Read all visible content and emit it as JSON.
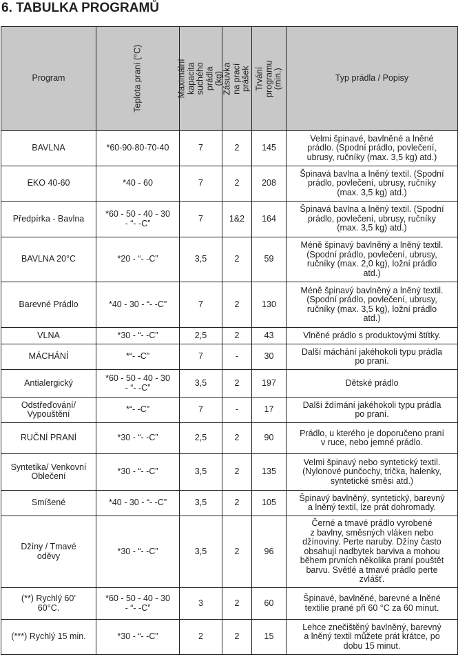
{
  "title": "6. TABULKA PROGRAMŮ",
  "header": {
    "program": "Program",
    "temp": "Teplota praní (°C)",
    "capacity": "Maximální kapacita\nsuchého prádla (kg)",
    "drawer": "Zásuvka na prací\nprášek",
    "duration": "Trvání programu\n(min.)",
    "desc": "Typ prádla / Popisy"
  },
  "colors": {
    "header_bg": "#c8c8c8",
    "border": "#222222"
  },
  "rows": [
    {
      "program": "BAVLNA",
      "temp": "*60-90-80-70-40",
      "capacity": "7",
      "drawer": "2",
      "duration": "145",
      "desc": "Velmi špinavé, bavlněné a lněné\nprádlo. (Spodní prádlo, povlečení,\nubrusy, ručníky (max. 3,5 kg) atd.)"
    },
    {
      "program": "EKO 40-60",
      "temp": "*40 - 60",
      "capacity": "7",
      "drawer": "2",
      "duration": "208",
      "desc": "Špinavá bavlna a lněný textil. (Spodní\nprádlo, povlečení, ubrusy, ručníky\n(max. 3,5 kg) atd.)"
    },
    {
      "program": "Předpírka - Bavlna",
      "temp": "*60 - 50 - 40 - 30\n- “- -C”",
      "capacity": "7",
      "drawer": "1&2",
      "duration": "164",
      "desc": "Špinavá bavlna a lněný textil. (Spodní\nprádlo, povlečení, ubrusy, ručníky\n(max. 3,5 kg) atd.)"
    },
    {
      "program": "BAVLNA 20°C",
      "temp": "*20 - “- -C”",
      "capacity": "3,5",
      "drawer": "2",
      "duration": "59",
      "desc": "Méně špinavý bavlněný a lněný textil.\n(Spodní prádlo, povlečení, ubrusy,\nručníky (max. 2,0 kg), ložní prádlo\natd.)"
    },
    {
      "program": "Barevné Prádlo",
      "temp": "*40 - 30 - “- -C”",
      "capacity": "7",
      "drawer": "2",
      "duration": "130",
      "desc": "Méně špinavý bavlněný a lněný textil.\n(Spodní prádlo, povlečení, ubrusy,\nručníky (max. 3,5 kg), ložní prádlo\natd.)"
    },
    {
      "program": "VLNA",
      "temp": "*30 - “- -C”",
      "capacity": "2,5",
      "drawer": "2",
      "duration": "43",
      "desc": "Vlněné prádlo s produktovými štítky."
    },
    {
      "program": "MÁCHÁNÍ",
      "temp": "*“- -C”",
      "capacity": "7",
      "drawer": "-",
      "duration": "30",
      "desc": "Další máchání jakéhokoli typu prádla\npo praní."
    },
    {
      "program": "Antialergický",
      "temp": "*60 - 50 - 40 - 30\n- “- -C”",
      "capacity": "3,5",
      "drawer": "2",
      "duration": "197",
      "desc": "Dětské prádlo"
    },
    {
      "program": "Odstřeďování/\nVypouštění",
      "temp": "*“- -C”",
      "capacity": "7",
      "drawer": "-",
      "duration": "17",
      "desc": "Další ždímání jakéhokoli typu prádla\npo praní."
    },
    {
      "program": "RUČNÍ PRANÍ",
      "temp": "*30 - “- -C”",
      "capacity": "2,5",
      "drawer": "2",
      "duration": "90",
      "desc": "Prádlo, u kterého je doporučeno praní\nv ruce, nebo jemné prádlo."
    },
    {
      "program": "Syntetika/ Venkovní\nOblečení",
      "temp": "*30 - “- -C”",
      "capacity": "3,5",
      "drawer": "2",
      "duration": "135",
      "desc": "Velmi špinavý nebo syntetický textil.\n(Nylonové punčochy, trička, halenky,\nsyntetické směsi atd.)"
    },
    {
      "program": "Smíšené",
      "temp": "*40 - 30 - “- -C”",
      "capacity": "3,5",
      "drawer": "2",
      "duration": "105",
      "desc": "Špinavý bavlněný, syntetický, barevný\na lněný textil, lze prát dohromady."
    },
    {
      "program": "Džíny / Tmavé\noděvy",
      "temp": "*30 - “- -C”",
      "capacity": "3,5",
      "drawer": "2",
      "duration": "96",
      "desc": "Černé a tmavé prádlo vyrobené\nz bavlny, směsných vláken nebo\ndžínoviny. Perte naruby. Džíny často\nobsahují nadbytek barviva a mohou\nběhem prvních několika praní pouštět\nbarvu. Světlé a tmavé prádlo perte\nzvlášť."
    },
    {
      "program": "(**) Rychlý 60’\n60°C.",
      "temp": "*60 - 50 - 40 - 30\n- “- -C”",
      "capacity": "3",
      "drawer": "2",
      "duration": "60",
      "desc": "Špinavé, bavlněné, barevné a lněné\ntextilie prané při 60 °C za 60 minut."
    },
    {
      "program": "(***) Rychlý 15 min.",
      "temp": "*30 - “- -C”",
      "capacity": "2",
      "drawer": "2",
      "duration": "15",
      "desc": "Lehce znečištěný bavlněný, barevný\na lněný textil můžete prát krátce, po\ndobu 15 minut."
    }
  ]
}
